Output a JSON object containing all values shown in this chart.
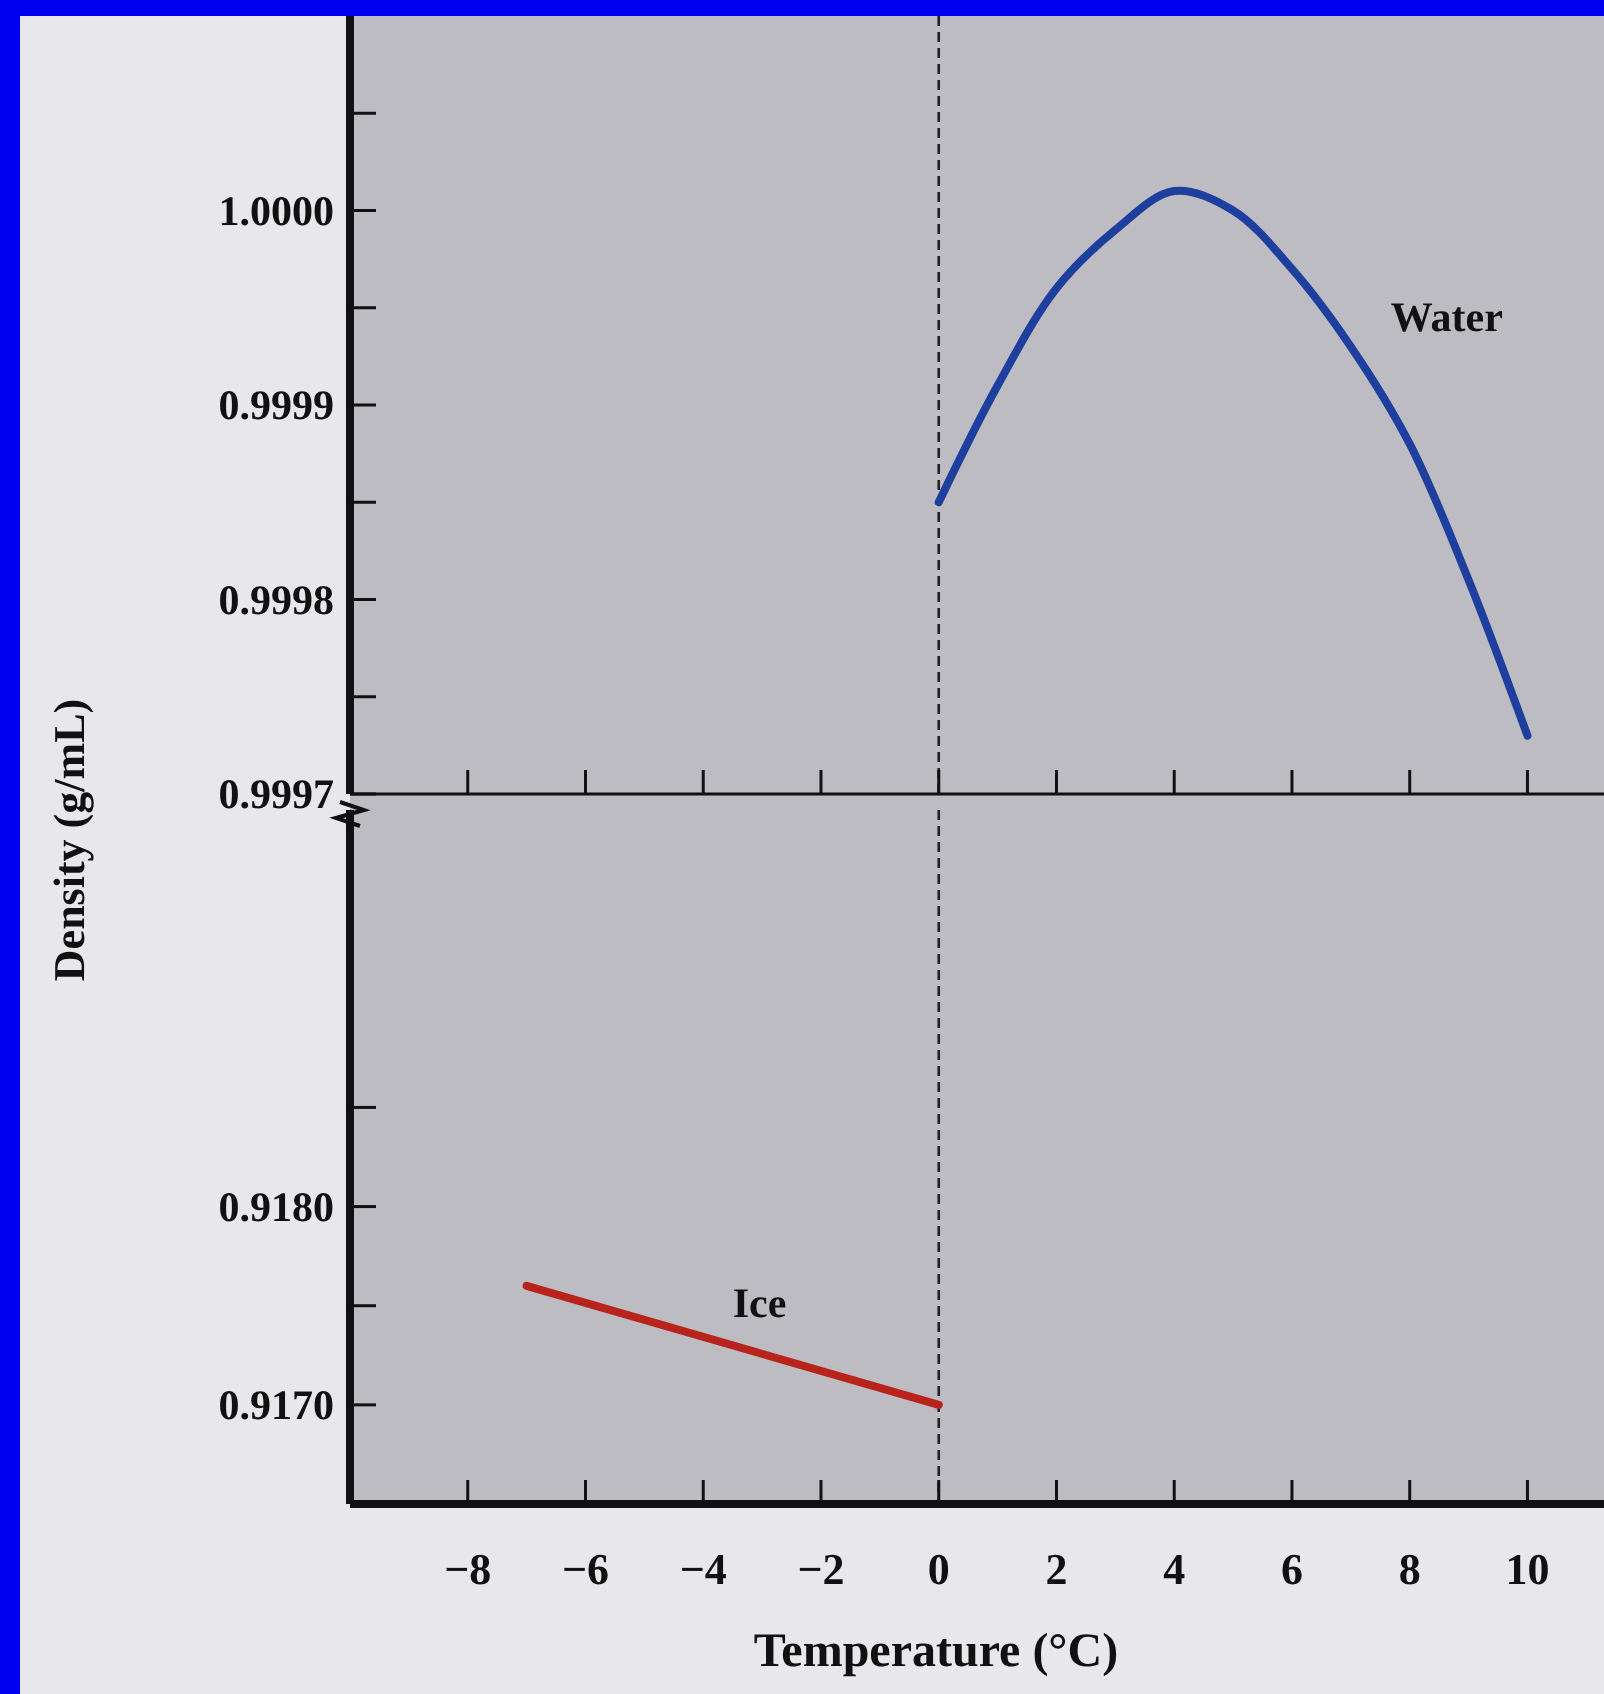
{
  "chart_data": [
    {
      "type": "line",
      "ylabel": "Density (g/mL)",
      "xlim": [
        -10,
        11.3
      ],
      "xticks": [
        {
          "value": -8,
          "label": null
        },
        {
          "value": -6,
          "label": null
        },
        {
          "value": -4,
          "label": null
        },
        {
          "value": -2,
          "label": null
        },
        {
          "value": 0,
          "label": null
        },
        {
          "value": 2,
          "label": null
        },
        {
          "value": 4,
          "label": null
        },
        {
          "value": 6,
          "label": null
        },
        {
          "value": 8,
          "label": null
        },
        {
          "value": 10,
          "label": null
        }
      ],
      "ylim": [
        0.9997,
        1.0001
      ],
      "yticks": [
        0.9997,
        {
          "value": 0.99975,
          "label": null
        },
        0.9998,
        {
          "value": 0.99985,
          "label": null
        },
        0.9999,
        {
          "value": 0.99995,
          "label": null
        },
        {
          "value": 1.0,
          "label": "1.0000"
        },
        {
          "value": 1.00005,
          "label": null
        }
      ],
      "tick_labels": "y",
      "grid": false,
      "ref_lines": [
        {
          "axis": "x",
          "value": 0,
          "line_style": "dashed",
          "color": "#222222"
        }
      ],
      "series": [
        {
          "name": "Water",
          "color": "#1f3f9f",
          "x": [
            0,
            1,
            2,
            3,
            4,
            5,
            6,
            7,
            8,
            9,
            10
          ],
          "values": [
            0.99985,
            0.99991,
            0.99996,
            0.99999,
            1.00001,
            1.0,
            0.99997,
            0.99993,
            0.99988,
            0.99981,
            0.99973
          ]
        }
      ]
    },
    {
      "type": "line",
      "xlabel": "Temperature (°C)",
      "xlim": [
        -10,
        11.3
      ],
      "xticks": [
        -8,
        -6,
        -4,
        -2,
        0,
        2,
        4,
        6,
        8,
        10
      ],
      "ylim": [
        0.9165,
        0.92
      ],
      "yticks": [
        {
          "value": 0.917,
          "label": "0.9170"
        },
        {
          "value": 0.9175,
          "label": null
        },
        {
          "value": 0.918,
          "label": "0.9180"
        },
        {
          "value": 0.9185,
          "label": null
        }
      ],
      "grid": false,
      "ref_lines": [
        {
          "axis": "x",
          "value": 0,
          "line_style": "dashed",
          "color": "#222222"
        }
      ],
      "series": [
        {
          "name": "Ice",
          "color": "#b8231c",
          "x": [
            -7,
            0
          ],
          "values": [
            0.9176,
            0.917
          ]
        }
      ]
    }
  ]
}
